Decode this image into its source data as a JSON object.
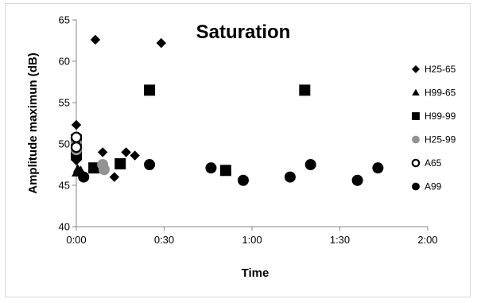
{
  "chart_data": {
    "type": "scatter",
    "title": "Saturation",
    "xlabel": "Time",
    "ylabel": "Amplitude maximun (dB)",
    "xlim": [
      0,
      120
    ],
    "ylim": [
      40,
      65
    ],
    "x_unit": "minutes",
    "xticks": [
      0,
      30,
      60,
      90,
      120
    ],
    "xtick_labels": [
      "0:00",
      "0:30",
      "1:00",
      "1:30",
      "2:00"
    ],
    "yticks": [
      40,
      45,
      50,
      55,
      60,
      65
    ],
    "ytick_labels": [
      "40",
      "45",
      "50",
      "55",
      "60",
      "65"
    ],
    "grid": false,
    "legend_position": "right",
    "series": [
      {
        "name": "H25-65",
        "marker": "diamond",
        "color": "#000000",
        "points": [
          [
            0,
            52.3
          ],
          [
            0,
            48.0
          ],
          [
            0,
            49.5
          ],
          [
            6.5,
            62.6
          ],
          [
            9,
            49.0
          ],
          [
            13,
            46.0
          ],
          [
            17,
            49.0
          ],
          [
            20,
            48.6
          ],
          [
            29,
            62.2
          ]
        ]
      },
      {
        "name": "H99-65",
        "marker": "triangle",
        "color": "#000000",
        "points": [
          [
            0,
            46.5
          ],
          [
            0.5,
            47.0
          ],
          [
            1.5,
            46.8
          ]
        ]
      },
      {
        "name": "H99-99",
        "marker": "square",
        "color": "#000000",
        "points": [
          [
            0,
            48.7
          ],
          [
            0,
            50.5
          ],
          [
            6,
            47.1
          ],
          [
            15,
            47.6
          ],
          [
            25,
            56.5
          ],
          [
            51,
            46.8
          ],
          [
            78,
            56.5
          ]
        ]
      },
      {
        "name": "H25-99",
        "marker": "circle",
        "color": "#939393",
        "points": [
          [
            0,
            50.2
          ],
          [
            0,
            49.3
          ],
          [
            9,
            47.5
          ],
          [
            9.5,
            46.9
          ]
        ]
      },
      {
        "name": "A65",
        "marker": "open-circle",
        "color": "#000000",
        "points": [
          [
            0,
            50.8
          ],
          [
            0,
            49.6
          ]
        ]
      },
      {
        "name": "A99",
        "marker": "circle",
        "color": "#000000",
        "points": [
          [
            2.5,
            46.0
          ],
          [
            25,
            47.5
          ],
          [
            46,
            47.1
          ],
          [
            57,
            45.6
          ],
          [
            73,
            46.0
          ],
          [
            80,
            47.5
          ],
          [
            96,
            45.6
          ],
          [
            103,
            47.1
          ]
        ]
      }
    ]
  }
}
